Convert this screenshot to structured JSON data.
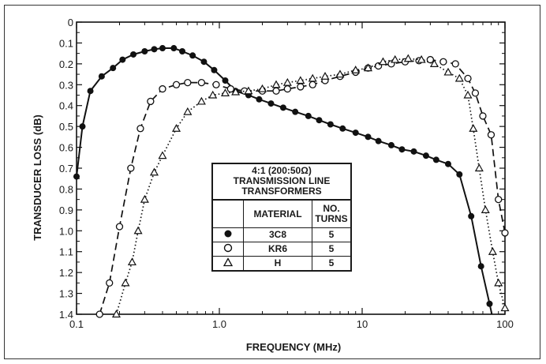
{
  "chart_data": {
    "type": "line",
    "title": "",
    "xlabel": "FREQUENCY (MHz)",
    "ylabel": "TRANSDUCER LOSS (dB)",
    "x_scale": "log",
    "xlim": [
      0.1,
      100
    ],
    "ylim": [
      0,
      1.4
    ],
    "y_inverted": true,
    "x_ticks": [
      "0.1",
      "1.0",
      "10",
      "100"
    ],
    "y_ticks": [
      "0",
      "0.1",
      "0.2",
      "0.3",
      "0.4",
      "0.5",
      "0.6",
      "0.7",
      "0.8",
      "0.9",
      "1.0",
      "1.1",
      "1.2",
      "1.3",
      "1.4"
    ],
    "grid": false,
    "legend_position": "center",
    "legend": {
      "title_lines": [
        "4:1 (200:50Ω)",
        "TRANSMISSION LINE",
        "TRANSFORMERS"
      ],
      "col_material": "MATERIAL",
      "col_turns_line1": "NO.",
      "col_turns_line2": "TURNS",
      "rows": [
        {
          "symbol": "filled-circle-icon",
          "material": "3C8",
          "turns": "5"
        },
        {
          "symbol": "open-circle-icon",
          "material": "KR6",
          "turns": "5"
        },
        {
          "symbol": "open-triangle-icon",
          "material": "H",
          "turns": "5"
        }
      ]
    },
    "series": [
      {
        "name": "3C8",
        "style": "solid",
        "marker": "filled-circle",
        "color": "#111111",
        "points": [
          [
            0.1,
            0.74
          ],
          [
            0.11,
            0.5
          ],
          [
            0.125,
            0.33
          ],
          [
            0.15,
            0.26
          ],
          [
            0.18,
            0.22
          ],
          [
            0.21,
            0.18
          ],
          [
            0.25,
            0.155
          ],
          [
            0.3,
            0.14
          ],
          [
            0.35,
            0.13
          ],
          [
            0.4,
            0.125
          ],
          [
            0.48,
            0.125
          ],
          [
            0.55,
            0.14
          ],
          [
            0.65,
            0.16
          ],
          [
            0.78,
            0.19
          ],
          [
            0.92,
            0.23
          ],
          [
            1.1,
            0.28
          ],
          [
            1.3,
            0.33
          ],
          [
            1.6,
            0.35
          ],
          [
            1.9,
            0.37
          ],
          [
            2.3,
            0.39
          ],
          [
            2.8,
            0.41
          ],
          [
            3.4,
            0.43
          ],
          [
            4.2,
            0.45
          ],
          [
            5,
            0.47
          ],
          [
            6,
            0.49
          ],
          [
            7.3,
            0.51
          ],
          [
            9,
            0.53
          ],
          [
            11,
            0.55
          ],
          [
            13,
            0.57
          ],
          [
            16,
            0.59
          ],
          [
            19,
            0.61
          ],
          [
            23,
            0.62
          ],
          [
            28,
            0.64
          ],
          [
            33,
            0.66
          ],
          [
            40,
            0.68
          ],
          [
            48,
            0.73
          ],
          [
            58,
            0.93
          ],
          [
            68,
            1.17
          ],
          [
            78,
            1.35
          ],
          [
            84,
            1.45
          ]
        ]
      },
      {
        "name": "KR6",
        "style": "dashed",
        "marker": "open-circle",
        "color": "#111111",
        "points": [
          [
            0.145,
            1.4
          ],
          [
            0.17,
            1.25
          ],
          [
            0.2,
            0.98
          ],
          [
            0.24,
            0.7
          ],
          [
            0.28,
            0.51
          ],
          [
            0.33,
            0.38
          ],
          [
            0.4,
            0.32
          ],
          [
            0.5,
            0.3
          ],
          [
            0.6,
            0.29
          ],
          [
            0.75,
            0.29
          ],
          [
            0.95,
            0.3
          ],
          [
            1.2,
            0.32
          ],
          [
            1.5,
            0.33
          ],
          [
            2,
            0.33
          ],
          [
            2.5,
            0.33
          ],
          [
            3,
            0.32
          ],
          [
            3.7,
            0.31
          ],
          [
            4.5,
            0.3
          ],
          [
            5.5,
            0.28
          ],
          [
            7,
            0.26
          ],
          [
            9,
            0.24
          ],
          [
            11,
            0.22
          ],
          [
            13,
            0.21
          ],
          [
            16,
            0.2
          ],
          [
            20,
            0.19
          ],
          [
            25,
            0.185
          ],
          [
            30,
            0.18
          ],
          [
            37,
            0.19
          ],
          [
            45,
            0.2
          ],
          [
            55,
            0.27
          ],
          [
            62,
            0.34
          ],
          [
            70,
            0.45
          ],
          [
            80,
            0.54
          ],
          [
            90,
            0.85
          ],
          [
            100,
            1.01
          ]
        ]
      },
      {
        "name": "H",
        "style": "dotted",
        "marker": "open-triangle",
        "color": "#111111",
        "points": [
          [
            0.19,
            1.4
          ],
          [
            0.22,
            1.25
          ],
          [
            0.245,
            1.15
          ],
          [
            0.27,
            1.0
          ],
          [
            0.3,
            0.85
          ],
          [
            0.35,
            0.72
          ],
          [
            0.4,
            0.64
          ],
          [
            0.5,
            0.51
          ],
          [
            0.6,
            0.43
          ],
          [
            0.75,
            0.38
          ],
          [
            0.9,
            0.35
          ],
          [
            1.1,
            0.34
          ],
          [
            1.3,
            0.335
          ],
          [
            1.6,
            0.33
          ],
          [
            2,
            0.32
          ],
          [
            2.5,
            0.3
          ],
          [
            3,
            0.29
          ],
          [
            3.7,
            0.28
          ],
          [
            4.5,
            0.27
          ],
          [
            5.5,
            0.26
          ],
          [
            7,
            0.25
          ],
          [
            9,
            0.23
          ],
          [
            11,
            0.22
          ],
          [
            14,
            0.19
          ],
          [
            17,
            0.18
          ],
          [
            21,
            0.175
          ],
          [
            26,
            0.18
          ],
          [
            32,
            0.2
          ],
          [
            40,
            0.24
          ],
          [
            48,
            0.27
          ],
          [
            55,
            0.35
          ],
          [
            60,
            0.51
          ],
          [
            66,
            0.7
          ],
          [
            73,
            0.9
          ],
          [
            82,
            1.1
          ],
          [
            90,
            1.25
          ],
          [
            100,
            1.37
          ]
        ]
      }
    ]
  }
}
